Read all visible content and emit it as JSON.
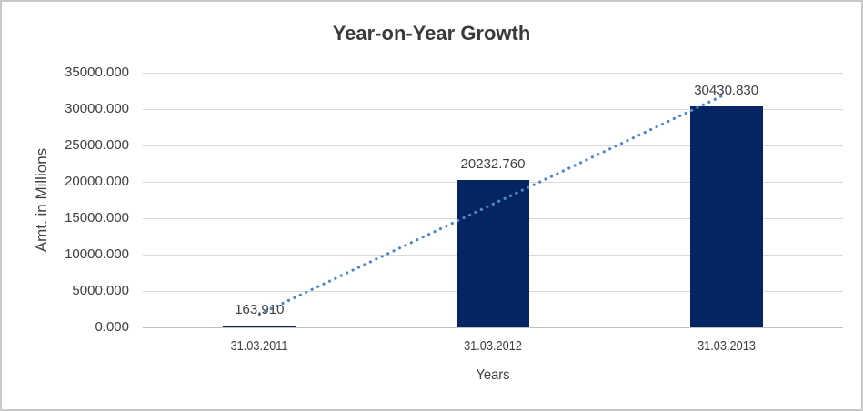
{
  "chart_data": {
    "type": "bar",
    "title": "Year-on-Year Growth",
    "xlabel": "Years",
    "ylabel": "Amt. in Millions",
    "categories": [
      "31.03.2011",
      "31.03.2012",
      "31.03.2013"
    ],
    "values": [
      163.91,
      20232.76,
      30430.83
    ],
    "data_labels": [
      "163,910",
      "20232.760",
      "30430.830"
    ],
    "ylim": [
      0,
      35000
    ],
    "ytick_step": 5000,
    "ytick_labels": [
      "0.000",
      "5000.000",
      "10000.000",
      "15000.000",
      "20000.000",
      "25000.000",
      "30000.000",
      "35000.000"
    ],
    "grid": true,
    "legend_position": "none",
    "trendline": {
      "type": "linear",
      "style": "dotted"
    },
    "colors": {
      "bar": "#052562",
      "trendline": "#4f87cb",
      "gridline": "#d9d9d9",
      "axis_line": "#bfbfbf",
      "text": "#404040",
      "title": "#3a3a3a",
      "frame_border": "#c8c8c8",
      "background": "#ffffff"
    }
  }
}
